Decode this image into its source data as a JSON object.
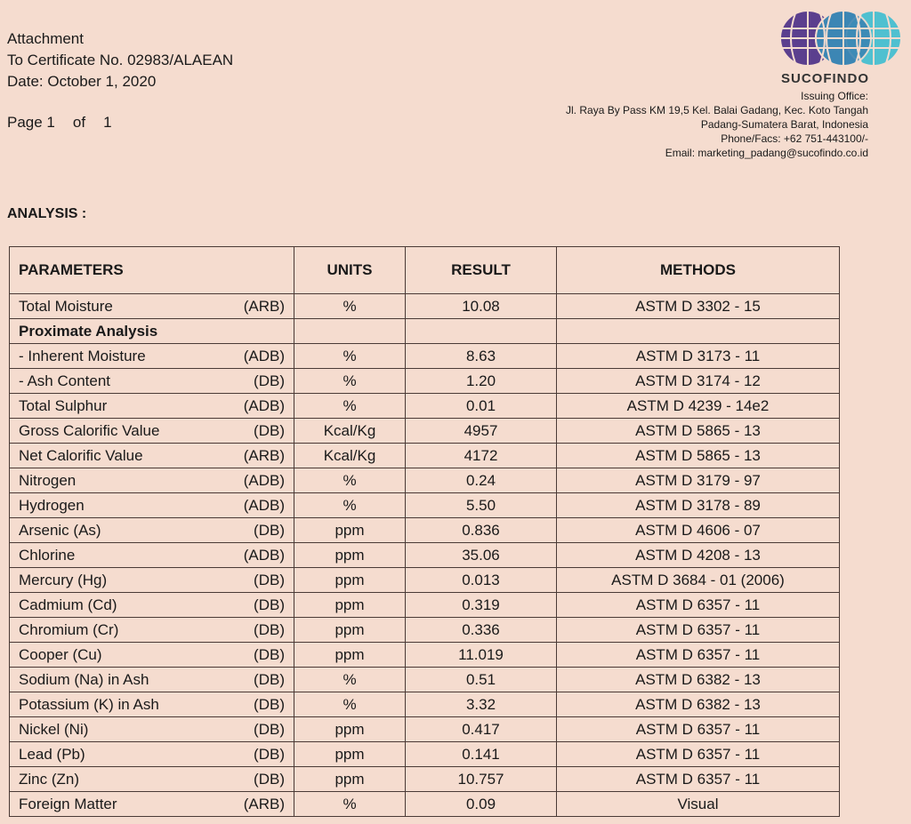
{
  "header": {
    "line1": "Attachment",
    "line2": "To Certificate No. 02983/ALAEAN",
    "line3": "Date: October 1, 2020",
    "page_label": "Page 1",
    "page_of": "of",
    "page_total": "1"
  },
  "company": {
    "logo_text": "SUCOFINDO",
    "issuing": "Issuing Office:",
    "address1": "Jl. Raya By Pass KM 19,5 Kel. Balai Gadang, Kec. Koto Tangah",
    "address2": "Padang-Sumatera Barat, Indonesia",
    "phone": "Phone/Facs: +62 751-443100/-",
    "email": "Email: marketing_padang@sucofindo.co.id",
    "logo_colors": [
      "#5b3f8e",
      "#3c86b4",
      "#4fc0d0"
    ]
  },
  "section_title": "ANALYSIS :",
  "table": {
    "headers": [
      "PARAMETERS",
      "UNITS",
      "RESULT",
      "METHODS"
    ],
    "rows": [
      {
        "param": "Total Moisture",
        "basis": "(ARB)",
        "unit": "%",
        "result": "10.08",
        "method": "ASTM D 3302 - 15"
      },
      {
        "param": "Proximate Analysis",
        "basis": "",
        "unit": "",
        "result": "",
        "method": "",
        "bold": true
      },
      {
        "param": "- Inherent Moisture",
        "basis": "(ADB)",
        "unit": "%",
        "result": "8.63",
        "method": "ASTM D 3173 - 11"
      },
      {
        "param": "- Ash Content",
        "basis": "(DB)",
        "unit": "%",
        "result": "1.20",
        "method": "ASTM D 3174 - 12"
      },
      {
        "param": "Total Sulphur",
        "basis": "(ADB)",
        "unit": "%",
        "result": "0.01",
        "method": "ASTM D 4239 - 14e2"
      },
      {
        "param": "Gross Calorific Value",
        "basis": "(DB)",
        "unit": "Kcal/Kg",
        "result": "4957",
        "method": "ASTM D 5865 - 13"
      },
      {
        "param": "Net Calorific Value",
        "basis": "(ARB)",
        "unit": "Kcal/Kg",
        "result": "4172",
        "method": "ASTM D 5865 - 13"
      },
      {
        "param": "Nitrogen",
        "basis": "(ADB)",
        "unit": "%",
        "result": "0.24",
        "method": "ASTM D 3179 - 97"
      },
      {
        "param": "Hydrogen",
        "basis": "(ADB)",
        "unit": "%",
        "result": "5.50",
        "method": "ASTM D 3178 - 89"
      },
      {
        "param": "Arsenic (As)",
        "basis": "(DB)",
        "unit": "ppm",
        "result": "0.836",
        "method": "ASTM D 4606 - 07"
      },
      {
        "param": "Chlorine",
        "basis": "(ADB)",
        "unit": "ppm",
        "result": "35.06",
        "method": "ASTM D 4208 - 13"
      },
      {
        "param": "Mercury (Hg)",
        "basis": "(DB)",
        "unit": "ppm",
        "result": "0.013",
        "method": "ASTM D 3684 - 01 (2006)"
      },
      {
        "param": "Cadmium (Cd)",
        "basis": "(DB)",
        "unit": "ppm",
        "result": "0.319",
        "method": "ASTM D 6357 - 11"
      },
      {
        "param": "Chromium (Cr)",
        "basis": "(DB)",
        "unit": "ppm",
        "result": "0.336",
        "method": "ASTM D 6357 - 11"
      },
      {
        "param": "Cooper (Cu)",
        "basis": "(DB)",
        "unit": "ppm",
        "result": "11.019",
        "method": "ASTM D 6357 - 11"
      },
      {
        "param": "Sodium (Na) in Ash",
        "basis": "(DB)",
        "unit": "%",
        "result": "0.51",
        "method": "ASTM D 6382 - 13"
      },
      {
        "param": "Potassium (K) in Ash",
        "basis": "(DB)",
        "unit": "%",
        "result": "3.32",
        "method": "ASTM D 6382 - 13"
      },
      {
        "param": "Nickel (Ni)",
        "basis": "(DB)",
        "unit": "ppm",
        "result": "0.417",
        "method": "ASTM D 6357 - 11"
      },
      {
        "param": "Lead (Pb)",
        "basis": "(DB)",
        "unit": "ppm",
        "result": "0.141",
        "method": "ASTM D 6357 - 11"
      },
      {
        "param": "Zinc (Zn)",
        "basis": "(DB)",
        "unit": "ppm",
        "result": "10.757",
        "method": "ASTM D 6357 - 11"
      },
      {
        "param": "Foreign Matter",
        "basis": "(ARB)",
        "unit": "%",
        "result": "0.09",
        "method": "Visual"
      }
    ]
  }
}
